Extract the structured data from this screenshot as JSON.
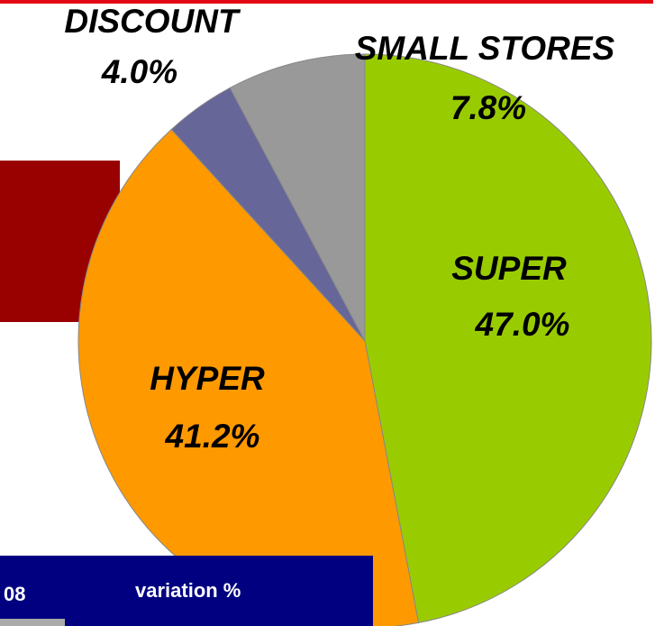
{
  "chart_data": {
    "type": "pie",
    "categories": [
      "SUPER",
      "HYPER",
      "DISCOUNT",
      "SMALL STORES"
    ],
    "values": [
      47.0,
      41.2,
      4.0,
      7.8
    ],
    "value_labels": [
      "47.0%",
      "41.2%",
      "4.0%",
      "7.8%"
    ],
    "colors": [
      "#99cc00",
      "#ff9900",
      "#666699",
      "#999999"
    ]
  },
  "table_header": [
    "08",
    "variation %"
  ]
}
